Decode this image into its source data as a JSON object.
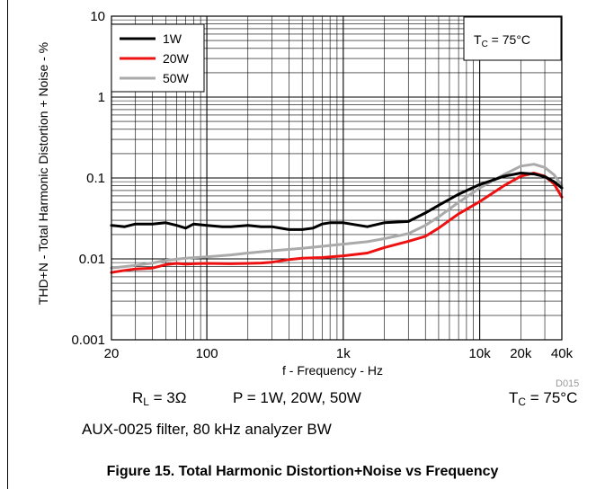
{
  "chart_data": {
    "type": "line",
    "xscale": "log",
    "yscale": "log",
    "xlim": [
      20,
      40000
    ],
    "ylim": [
      0.001,
      10
    ],
    "xlabel": "f - Frequency - Hz",
    "ylabel": "THD+N - Total Harmonic Distortion + Noise - %",
    "xticks": [
      {
        "value": 20,
        "label": "20"
      },
      {
        "value": 100,
        "label": "100"
      },
      {
        "value": 1000,
        "label": "1k"
      },
      {
        "value": 10000,
        "label": "10k"
      },
      {
        "value": 20000,
        "label": "20k"
      },
      {
        "value": 40000,
        "label": "40k"
      }
    ],
    "yticks": [
      {
        "value": 10,
        "label": "10"
      },
      {
        "value": 1,
        "label": "1"
      },
      {
        "value": 0.1,
        "label": "0.1"
      },
      {
        "value": 0.01,
        "label": "0.01"
      },
      {
        "value": 0.001,
        "label": "0.001"
      }
    ],
    "grid": true,
    "legend_position": "top-left",
    "series": [
      {
        "name": "1W",
        "color": "#000000",
        "points": [
          [
            20,
            0.026
          ],
          [
            25,
            0.025
          ],
          [
            30,
            0.027
          ],
          [
            40,
            0.027
          ],
          [
            50,
            0.028
          ],
          [
            60,
            0.026
          ],
          [
            70,
            0.024
          ],
          [
            80,
            0.027
          ],
          [
            100,
            0.026
          ],
          [
            130,
            0.025
          ],
          [
            150,
            0.025
          ],
          [
            200,
            0.026
          ],
          [
            250,
            0.025
          ],
          [
            300,
            0.025
          ],
          [
            400,
            0.023
          ],
          [
            500,
            0.023
          ],
          [
            600,
            0.024
          ],
          [
            700,
            0.027
          ],
          [
            800,
            0.028
          ],
          [
            1000,
            0.028
          ],
          [
            1500,
            0.025
          ],
          [
            2000,
            0.028
          ],
          [
            3000,
            0.029
          ],
          [
            4000,
            0.037
          ],
          [
            5000,
            0.046
          ],
          [
            7000,
            0.063
          ],
          [
            10000,
            0.083
          ],
          [
            12000,
            0.092
          ],
          [
            15000,
            0.105
          ],
          [
            20000,
            0.115
          ],
          [
            25000,
            0.112
          ],
          [
            30000,
            0.104
          ],
          [
            35000,
            0.09
          ],
          [
            40000,
            0.075
          ]
        ]
      },
      {
        "name": "20W",
        "color": "#ee1111",
        "points": [
          [
            20,
            0.0068
          ],
          [
            25,
            0.0072
          ],
          [
            30,
            0.0075
          ],
          [
            40,
            0.0077
          ],
          [
            50,
            0.0085
          ],
          [
            60,
            0.0088
          ],
          [
            70,
            0.0086
          ],
          [
            80,
            0.0087
          ],
          [
            100,
            0.0088
          ],
          [
            150,
            0.0087
          ],
          [
            200,
            0.0088
          ],
          [
            250,
            0.0089
          ],
          [
            300,
            0.0091
          ],
          [
            400,
            0.0098
          ],
          [
            500,
            0.0102
          ],
          [
            700,
            0.0104
          ],
          [
            1000,
            0.0109
          ],
          [
            1500,
            0.0118
          ],
          [
            2000,
            0.0138
          ],
          [
            3000,
            0.0165
          ],
          [
            4000,
            0.019
          ],
          [
            5000,
            0.024
          ],
          [
            7000,
            0.036
          ],
          [
            10000,
            0.051
          ],
          [
            15000,
            0.08
          ],
          [
            20000,
            0.105
          ],
          [
            25000,
            0.115
          ],
          [
            30000,
            0.105
          ],
          [
            35000,
            0.085
          ],
          [
            40000,
            0.058
          ]
        ]
      },
      {
        "name": "50W",
        "color": "#aaaaaa",
        "points": [
          [
            20,
            0.0077
          ],
          [
            30,
            0.0083
          ],
          [
            40,
            0.0089
          ],
          [
            50,
            0.0096
          ],
          [
            70,
            0.0102
          ],
          [
            100,
            0.0106
          ],
          [
            150,
            0.0112
          ],
          [
            200,
            0.0118
          ],
          [
            300,
            0.0126
          ],
          [
            500,
            0.0135
          ],
          [
            700,
            0.0143
          ],
          [
            1000,
            0.0152
          ],
          [
            1500,
            0.0163
          ],
          [
            2000,
            0.0178
          ],
          [
            3000,
            0.0205
          ],
          [
            4000,
            0.026
          ],
          [
            5000,
            0.033
          ],
          [
            7000,
            0.05
          ],
          [
            10000,
            0.075
          ],
          [
            15000,
            0.11
          ],
          [
            20000,
            0.14
          ],
          [
            25000,
            0.148
          ],
          [
            30000,
            0.135
          ],
          [
            35000,
            0.11
          ],
          [
            40000,
            0.08
          ]
        ]
      }
    ],
    "annotation": {
      "t_label": "T",
      "t_sub": "C",
      "t_value": " = 75°C"
    },
    "figure_id": "D015"
  },
  "conditions": {
    "rl_label": "R",
    "rl_sub": "L",
    "rl_value": " = 3Ω",
    "power": "P = 1W, 20W, 50W",
    "tc_label": "T",
    "tc_sub": "C",
    "tc_value": " = 75°C",
    "filter": "AUX-0025 filter, 80 kHz analyzer BW"
  },
  "caption": "Figure 15. Total Harmonic Distortion+Noise vs Frequency"
}
